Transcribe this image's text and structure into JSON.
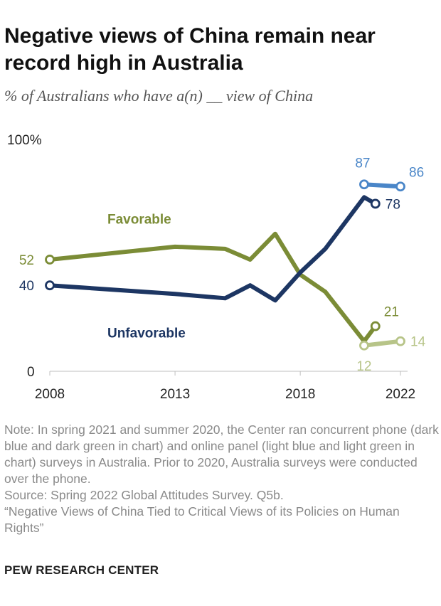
{
  "title": "Negative views of China remain near record high in Australia",
  "subtitle": "% of Australians who have a(n) __ view of China",
  "chart_data": {
    "type": "line",
    "title": "Negative views of China remain near record high in Australia",
    "subtitle": "% of Australians who have a(n) __ view of China",
    "xlim": [
      2008,
      2022
    ],
    "ylim": [
      0,
      100
    ],
    "y_ticks": [
      {
        "value": 0,
        "label": "0"
      },
      {
        "value": 100,
        "label": "100%"
      }
    ],
    "x_ticks": [
      {
        "value": 2008,
        "label": "2008"
      },
      {
        "value": 2013,
        "label": "2013"
      },
      {
        "value": 2018,
        "label": "2018"
      },
      {
        "value": 2022,
        "label": "2022"
      }
    ],
    "series_labels": [
      {
        "text": "Favorable",
        "color": "#7b8c36",
        "x": 2010.3,
        "y": 71
      },
      {
        "text": "Unfavorable",
        "color": "#1d3663",
        "x": 2010.3,
        "y": 18
      }
    ],
    "series": [
      {
        "name": "Favorable (phone)",
        "color": "#7b8c36",
        "x": [
          2008,
          2013,
          2015,
          2016,
          2017,
          2018,
          2019,
          2020.55,
          2021
        ],
        "values": [
          52,
          58,
          57,
          52,
          64,
          45,
          37,
          14,
          21
        ],
        "start_marker": true,
        "end_marker": true,
        "labels": [
          {
            "index": 0,
            "text": "52",
            "side": "left"
          },
          {
            "index": 8,
            "text": "21",
            "side": "above-right"
          }
        ]
      },
      {
        "name": "Unfavorable (phone)",
        "color": "#1d3663",
        "x": [
          2008,
          2013,
          2015,
          2016,
          2017,
          2018,
          2019,
          2020.55,
          2021
        ],
        "values": [
          40,
          36,
          34,
          40,
          33,
          46,
          57,
          81,
          78
        ],
        "start_marker": true,
        "end_marker": true,
        "labels": [
          {
            "index": 0,
            "text": "40",
            "side": "left"
          },
          {
            "index": 8,
            "text": "78",
            "side": "right"
          }
        ]
      },
      {
        "name": "Unfavorable (online panel)",
        "color": "#4a86c8",
        "x": [
          2020.55,
          2022
        ],
        "values": [
          87,
          86
        ],
        "start_marker": true,
        "end_marker": true,
        "labels": [
          {
            "index": 0,
            "text": "87",
            "side": "above"
          },
          {
            "index": 1,
            "text": "86",
            "side": "above-right"
          }
        ]
      },
      {
        "name": "Favorable (online panel)",
        "color": "#b7c488",
        "x": [
          2020.55,
          2022
        ],
        "values": [
          12,
          14
        ],
        "start_marker": true,
        "end_marker": true,
        "labels": [
          {
            "index": 0,
            "text": "12",
            "side": "below"
          },
          {
            "index": 1,
            "text": "14",
            "side": "right"
          }
        ]
      }
    ]
  },
  "notes": {
    "note": "Note: In spring 2021 and summer 2020, the Center ran concurrent phone (dark blue and dark green in chart) and online panel (light blue and light green in chart) surveys in Australia. Prior to 2020, Australia surveys were conducted over the phone.",
    "source": "Source: Spring 2022 Global Attitudes Survey. Q5b.",
    "report": "“Negative Views of China Tied to Critical Views of its Policies on Human Rights”"
  },
  "brand": "PEW RESEARCH CENTER"
}
